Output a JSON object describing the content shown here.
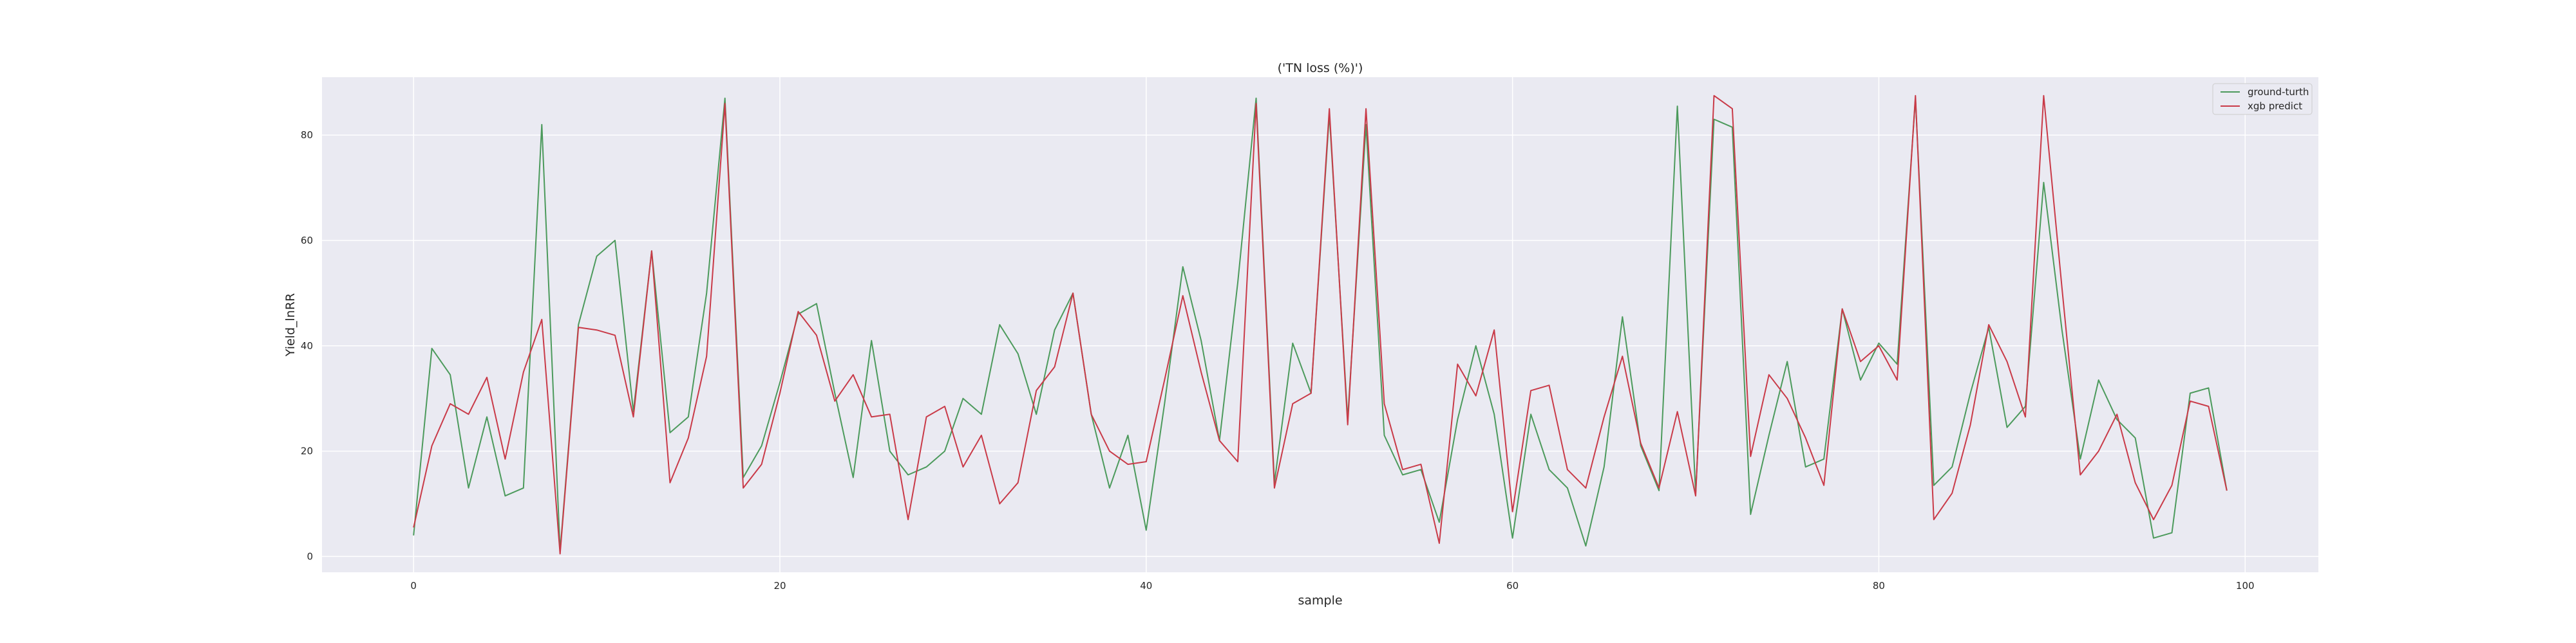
{
  "chart_data": {
    "type": "line",
    "title": "('TN loss (%)')",
    "xlabel": "sample",
    "ylabel": "Yield_lnRR",
    "xlim": [
      -5,
      104
    ],
    "ylim": [
      -3,
      91
    ],
    "x_ticks": [
      0,
      20,
      40,
      60,
      80,
      100
    ],
    "y_ticks": [
      0,
      20,
      40,
      60,
      80
    ],
    "grid": true,
    "legend_position": "top-right",
    "x": [
      0,
      1,
      2,
      3,
      4,
      5,
      6,
      7,
      8,
      9,
      10,
      11,
      12,
      13,
      14,
      15,
      16,
      17,
      18,
      19,
      20,
      21,
      22,
      23,
      24,
      25,
      26,
      27,
      28,
      29,
      30,
      31,
      32,
      33,
      34,
      35,
      36,
      37,
      38,
      39,
      40,
      41,
      42,
      43,
      44,
      45,
      46,
      47,
      48,
      49,
      50,
      51,
      52,
      53,
      54,
      55,
      56,
      57,
      58,
      59,
      60,
      61,
      62,
      63,
      64,
      65,
      66,
      67,
      68,
      69,
      70,
      71,
      72,
      73,
      74,
      75,
      76,
      77,
      78,
      79,
      80,
      81,
      82,
      83,
      84,
      85,
      86,
      87,
      88,
      89,
      90,
      91,
      92,
      93,
      94,
      95,
      96,
      97,
      98,
      99
    ],
    "series": [
      {
        "name": "ground-turth",
        "color": "#4c9a5c",
        "values": [
          4,
          39.5,
          34.5,
          13,
          26.5,
          11.5,
          13,
          82,
          1,
          44,
          57,
          60,
          27.5,
          58,
          23.5,
          26.5,
          50,
          87,
          15,
          21,
          33,
          46,
          48,
          31,
          15,
          41,
          20,
          15.5,
          17,
          20,
          30,
          27,
          44,
          38.5,
          27,
          43,
          50,
          27,
          13,
          23,
          5,
          29,
          55,
          41,
          22,
          52,
          87,
          14,
          40.5,
          31,
          84,
          26,
          82,
          23,
          15.5,
          16.5,
          6.5,
          26,
          40,
          27,
          3.5,
          27,
          16.5,
          13,
          2,
          17,
          45.5,
          21,
          12.5,
          85.5,
          12,
          83,
          81.5,
          8,
          23,
          37,
          17,
          18.5,
          47,
          33.5,
          40.5,
          36.5,
          87,
          13.5,
          17,
          31,
          43.5,
          24.5,
          28.5,
          71,
          43,
          18.5,
          33.5,
          26,
          22.5,
          3.5,
          4.5,
          31,
          32,
          12.5
        ]
      },
      {
        "name": "xgb predict",
        "color": "#c93a48",
        "values": [
          5.5,
          21,
          29,
          27,
          34,
          18.5,
          35,
          45,
          0.5,
          43.5,
          43,
          42,
          26.5,
          58,
          14,
          22.5,
          38,
          86,
          13,
          17.5,
          31,
          46.5,
          42,
          29.5,
          34.5,
          26.5,
          27,
          7,
          26.5,
          28.5,
          17,
          23,
          10,
          14,
          31.5,
          36,
          50,
          27,
          20,
          17.5,
          18,
          33.5,
          49.5,
          35,
          22,
          18,
          86,
          13,
          29,
          31,
          85,
          25,
          85,
          29,
          16.5,
          17.5,
          2.5,
          36.5,
          30.5,
          43,
          8.5,
          31.5,
          32.5,
          16.5,
          13,
          26.5,
          38,
          21.5,
          13,
          27.5,
          11.5,
          87.5,
          85,
          19,
          34.5,
          30,
          22.5,
          13.5,
          47,
          37,
          40,
          33.5,
          87.5,
          7,
          12,
          25,
          44,
          37,
          26.5,
          87.5,
          51,
          15.5,
          20,
          27,
          14,
          7,
          13.5,
          29.5,
          28.5,
          12.5
        ]
      }
    ]
  }
}
